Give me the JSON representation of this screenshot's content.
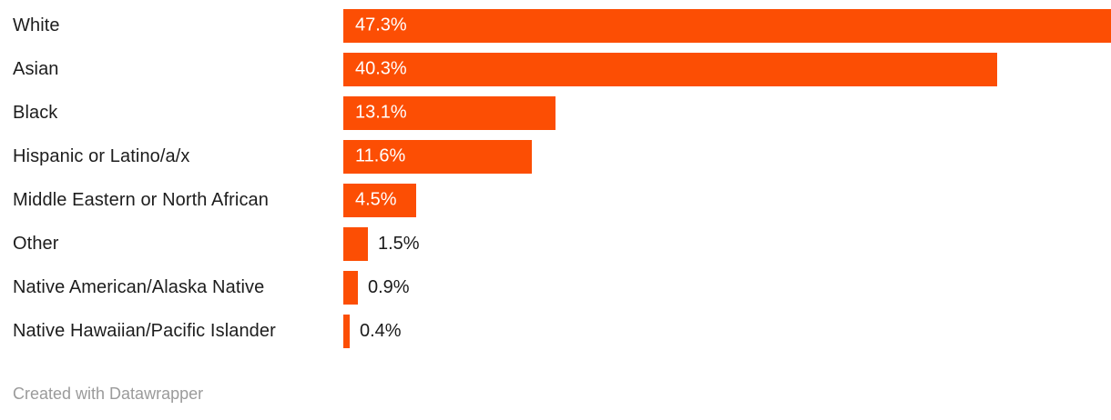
{
  "chart_data": {
    "type": "bar",
    "orientation": "horizontal",
    "title": "",
    "xlabel": "",
    "ylabel": "",
    "categories": [
      "White",
      "Asian",
      "Black",
      "Hispanic or Latino/a/x",
      "Middle Eastern or North African",
      "Other",
      "Native American/Alaska Native",
      "Native Hawaiian/Pacific Islander"
    ],
    "values": [
      47.3,
      40.3,
      13.1,
      11.6,
      4.5,
      1.5,
      0.9,
      0.4
    ],
    "value_labels": [
      "47.3%",
      "40.3%",
      "13.1%",
      "11.6%",
      "4.5%",
      "1.5%",
      "0.9%",
      "0.4%"
    ],
    "xlim": [
      0,
      47.3
    ],
    "grid": false,
    "legend_position": "none",
    "bar_color": "#fc4e04",
    "category_label_color": "#1d1d1d",
    "inside_value_color": "#ffffff",
    "outside_value_color": "#1a1a1a"
  },
  "footer": {
    "attribution": "Created with Datawrapper",
    "color": "#9b9b9b"
  }
}
